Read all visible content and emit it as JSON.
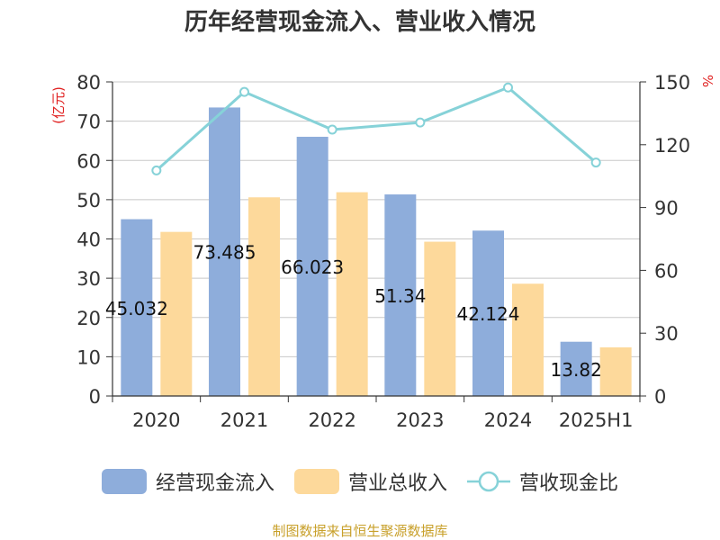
{
  "chart_data": {
    "type": "bar",
    "title": "历年经营现金流入、营业收入情况",
    "ylabel": "(亿元)",
    "y2label": "%",
    "categories": [
      "2020",
      "2021",
      "2022",
      "2023",
      "2024",
      "2025H1"
    ],
    "ylim": [
      0,
      80
    ],
    "yticks": [
      0,
      10,
      20,
      30,
      40,
      50,
      60,
      70,
      80
    ],
    "y2lim": [
      0,
      150
    ],
    "y2ticks": [
      0,
      30,
      60,
      90,
      120,
      150
    ],
    "grid": true,
    "legend_position": "bottom",
    "series": [
      {
        "name": "经营现金流入",
        "type": "bar",
        "axis": "left",
        "color": "#8eaddb",
        "values": [
          45.032,
          73.485,
          66.023,
          51.34,
          42.124,
          13.82
        ],
        "labels": [
          "45.032",
          "73.485",
          "66.023",
          "51.34",
          "42.124",
          "13.82"
        ]
      },
      {
        "name": "营业总收入",
        "type": "bar",
        "axis": "left",
        "color": "#fdd99b",
        "values": [
          41.8,
          50.6,
          51.9,
          39.3,
          28.6,
          12.4
        ]
      },
      {
        "name": "营收现金比",
        "type": "line",
        "axis": "right",
        "color": "#86d2d8",
        "values": [
          107.7,
          145.2,
          127.2,
          130.6,
          147.3,
          111.5
        ]
      }
    ]
  },
  "source_note": "制图数据来自恒生聚源数据库"
}
